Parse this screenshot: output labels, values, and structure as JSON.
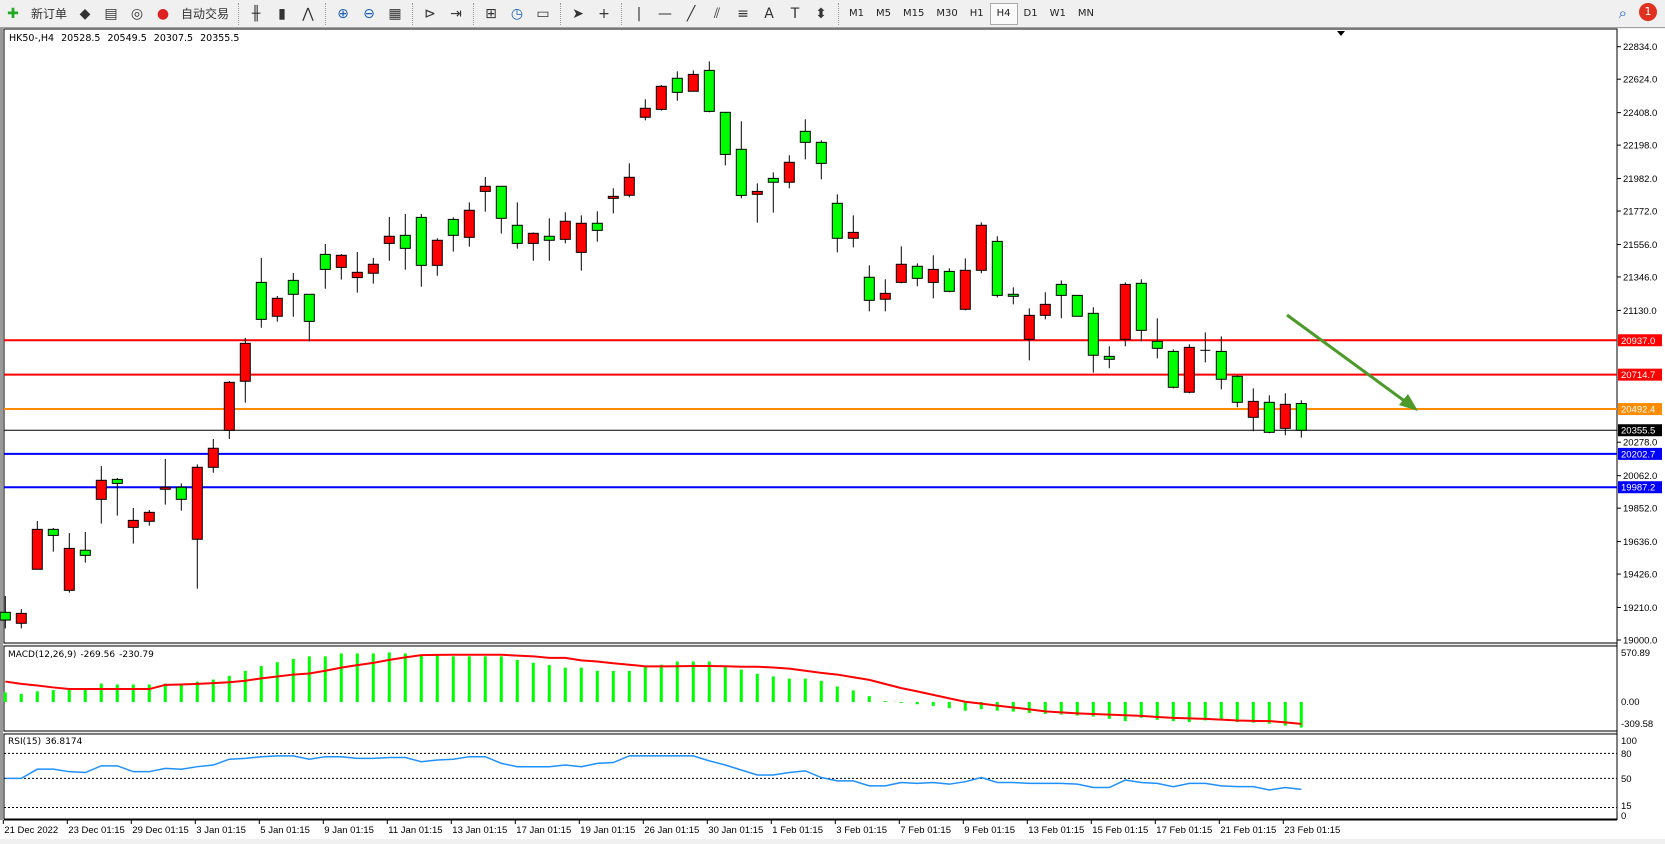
{
  "toolbar": {
    "new_order": "新订单",
    "auto_trading": "自动交易",
    "icons": [
      "new-order-icon",
      "market-watch-icon",
      "navigator-icon",
      "signals-icon",
      "auto-trading-icon",
      "bar-chart-icon",
      "candlestick-icon",
      "line-chart-icon",
      "zoom-in-icon",
      "zoom-out-icon",
      "tile-windows-icon",
      "chart-shift-icon",
      "autoscroll-icon",
      "indicators-icon",
      "periods-icon",
      "templates-icon",
      "cursor-icon",
      "crosshair-icon",
      "vertical-line-icon",
      "horizontal-line-icon",
      "trendline-icon",
      "equidistant-channel-icon",
      "fibonacci-icon",
      "text-icon",
      "text-label-icon",
      "arrows-icon"
    ],
    "timeframes": [
      "M1",
      "M5",
      "M15",
      "M30",
      "H1",
      "H4",
      "D1",
      "W1",
      "MN"
    ],
    "active_timeframe": "H4",
    "notification_count": "1"
  },
  "header": {
    "symbol": "HK50-,H4",
    "open": "20528.5",
    "high": "20549.5",
    "low": "20307.5",
    "close": "20355.5"
  },
  "colors": {
    "bull": "#ff0000",
    "bear": "#00ff00",
    "macd_hist": "#00ff00",
    "macd_signal": "#ff0000",
    "rsi": "#1e90ff",
    "arrow": "#4c9a2a"
  },
  "chart_data": [
    {
      "type": "candlestick",
      "ylim": [
        19000,
        22834
      ],
      "price_ticks": [
        "22834.0",
        "22624.0",
        "22408.0",
        "22198.0",
        "21982.0",
        "21772.0",
        "21556.0",
        "21346.0",
        "21130.0",
        "20278.0",
        "20062.0",
        "19852.0",
        "19636.0",
        "19426.0",
        "19210.0",
        "19000.0"
      ],
      "time_labels": [
        "21 Dec 2022",
        "23 Dec 01:15",
        "29 Dec 01:15",
        "3 Jan 01:15",
        "5 Jan 01:15",
        "9 Jan 01:15",
        "11 Jan 01:15",
        "13 Jan 01:15",
        "17 Jan 01:15",
        "19 Jan 01:15",
        "26 Jan 01:15",
        "30 Jan 01:15",
        "1 Feb 01:15",
        "3 Feb 01:15",
        "7 Feb 01:15",
        "9 Feb 01:15",
        "13 Feb 01:15",
        "15 Feb 01:15",
        "17 Feb 01:15",
        "21 Feb 01:15",
        "23 Feb 01:15"
      ],
      "hlines": [
        {
          "price": "20937.0",
          "color": "#ff0000"
        },
        {
          "price": "20714.7",
          "color": "#ff0000"
        },
        {
          "price": "20492.4",
          "color": "#ff8c00"
        },
        {
          "price": "20355.5",
          "color": "#000000"
        },
        {
          "price": "20202.7",
          "color": "#0000ff"
        },
        {
          "price": "19987.2",
          "color": "#0000ff"
        }
      ],
      "ohlc": [
        [
          19179,
          19284,
          19075,
          19129
        ],
        [
          19108,
          19200,
          19075,
          19172
        ],
        [
          19457,
          19769,
          19457,
          19715
        ],
        [
          19715,
          19724,
          19571,
          19676
        ],
        [
          19321,
          19691,
          19306,
          19592
        ],
        [
          19580,
          19698,
          19500,
          19547
        ],
        [
          19909,
          20124,
          19752,
          20032
        ],
        [
          20038,
          20047,
          19804,
          20012
        ],
        [
          19728,
          19853,
          19623,
          19773
        ],
        [
          19767,
          19840,
          19739,
          19825
        ],
        [
          19974,
          20170,
          19875,
          19987
        ],
        [
          19987,
          20012,
          19836,
          19909
        ],
        [
          19651,
          20135,
          19332,
          20116
        ],
        [
          20116,
          20299,
          20081,
          20239
        ],
        [
          20355,
          20674,
          20299,
          20665
        ],
        [
          20672,
          20952,
          20534,
          20917
        ],
        [
          21311,
          21469,
          21018,
          21072
        ],
        [
          21092,
          21223,
          21057,
          21208
        ],
        [
          21324,
          21372,
          21089,
          21234
        ],
        [
          21234,
          21234,
          20930,
          21059
        ],
        [
          21492,
          21559,
          21270,
          21395
        ],
        [
          21408,
          21494,
          21329,
          21486
        ],
        [
          21342,
          21507,
          21245,
          21376
        ],
        [
          21370,
          21469,
          21303,
          21428
        ],
        [
          21563,
          21734,
          21451,
          21609
        ],
        [
          21615,
          21753,
          21393,
          21531
        ],
        [
          21731,
          21753,
          21283,
          21421
        ],
        [
          21421,
          21596,
          21354,
          21583
        ],
        [
          21718,
          21731,
          21510,
          21615
        ],
        [
          21602,
          21828,
          21542,
          21777
        ],
        [
          21899,
          21992,
          21768,
          21932
        ],
        [
          21932,
          21932,
          21626,
          21725
        ],
        [
          21680,
          21828,
          21529,
          21563
        ],
        [
          21563,
          21634,
          21451,
          21628
        ],
        [
          21609,
          21725,
          21451,
          21583
        ],
        [
          21589,
          21764,
          21563,
          21706
        ],
        [
          21505,
          21744,
          21387,
          21693
        ],
        [
          21693,
          21770,
          21574,
          21647
        ],
        [
          21854,
          21919,
          21757,
          21867
        ],
        [
          21874,
          22080,
          21861,
          21990
        ],
        [
          22378,
          22494,
          22358,
          22436
        ],
        [
          22429,
          22586,
          22421,
          22578
        ],
        [
          22630,
          22675,
          22485,
          22539
        ],
        [
          22546,
          22681,
          22546,
          22655
        ],
        [
          22681,
          22739,
          22410,
          22416
        ],
        [
          22410,
          22410,
          22067,
          22138
        ],
        [
          22171,
          22352,
          21854,
          21873
        ],
        [
          21880,
          21951,
          21697,
          21899
        ],
        [
          21983,
          22022,
          21762,
          21958
        ],
        [
          21958,
          22132,
          21919,
          22087
        ],
        [
          22287,
          22365,
          22106,
          22216
        ],
        [
          22216,
          22229,
          21977,
          22080
        ],
        [
          21822,
          21880,
          21505,
          21596
        ],
        [
          21596,
          21744,
          21537,
          21634
        ],
        [
          21344,
          21421,
          21124,
          21195
        ],
        [
          21202,
          21331,
          21124,
          21240
        ],
        [
          21311,
          21544,
          21305,
          21428
        ],
        [
          21415,
          21434,
          21286,
          21337
        ],
        [
          21311,
          21486,
          21208,
          21395
        ],
        [
          21382,
          21402,
          21247,
          21253
        ],
        [
          21137,
          21466,
          21130,
          21389
        ],
        [
          21389,
          21699,
          21370,
          21680
        ],
        [
          21576,
          21609,
          21214,
          21227
        ],
        [
          21234,
          21279,
          21169,
          21221
        ],
        [
          20943,
          21143,
          20807,
          21098
        ],
        [
          21098,
          21247,
          21072,
          21169
        ],
        [
          21298,
          21324,
          21079,
          21227
        ],
        [
          21227,
          21227,
          21092,
          21092
        ],
        [
          21111,
          21150,
          20728,
          20840
        ],
        [
          20833,
          20898,
          20756,
          20814
        ],
        [
          20943,
          21311,
          20898,
          21298
        ],
        [
          21305,
          21331,
          20930,
          21001
        ],
        [
          20930,
          21079,
          20820,
          20885
        ],
        [
          20865,
          20878,
          20626,
          20633
        ],
        [
          20601,
          20911,
          20594,
          20891
        ],
        [
          20872,
          20988,
          20794,
          20872
        ],
        [
          20865,
          20962,
          20620,
          20685
        ],
        [
          20704,
          20710,
          20504,
          20536
        ],
        [
          20439,
          20626,
          20349,
          20542
        ],
        [
          20536,
          20581,
          20336,
          20342
        ],
        [
          20368,
          20594,
          20323,
          20523
        ],
        [
          20528.5,
          20549.5,
          20307.5,
          20355.5
        ]
      ]
    },
    {
      "type": "bar",
      "title": "MACD(12,26,9)",
      "value": "-269.56",
      "signal_value": "-230.79",
      "ticks": [
        "570.89",
        "0.00",
        "-309.58"
      ],
      "ylim": [
        -309.58,
        570.89
      ],
      "histogram": [
        102,
        86,
        113,
        126,
        137,
        137,
        195,
        185,
        185,
        185,
        195,
        195,
        216,
        237,
        277,
        329,
        380,
        421,
        455,
        482,
        482,
        513,
        513,
        513,
        524,
        513,
        496,
        496,
        482,
        482,
        482,
        482,
        445,
        415,
        390,
        363,
        363,
        329,
        329,
        329,
        370,
        394,
        428,
        428,
        428,
        370,
        342,
        298,
        270,
        247,
        247,
        223,
        164,
        123,
        62,
        10,
        -10,
        -24,
        -41,
        -65,
        -92,
        -76,
        -92,
        -102,
        -116,
        -126,
        -133,
        -144,
        -154,
        -178,
        -202,
        -168,
        -188,
        -202,
        -212,
        -195,
        -195,
        -212,
        -219,
        -230,
        -250,
        -269.56
      ],
      "signal": [
        216,
        192,
        175,
        154,
        137,
        137,
        137,
        137,
        137,
        137,
        181,
        185,
        192,
        200,
        209,
        225,
        250,
        270,
        290,
        301,
        330,
        363,
        390,
        414,
        445,
        472,
        496,
        498,
        500,
        500,
        500,
        500,
        490,
        483,
        466,
        466,
        440,
        428,
        410,
        394,
        377,
        377,
        378,
        380,
        380,
        378,
        373,
        373,
        365,
        353,
        330,
        308,
        290,
        262,
        234,
        190,
        147,
        112,
        75,
        38,
        3,
        -17,
        -38,
        -58,
        -78,
        -99,
        -110,
        -120,
        -127,
        -133,
        -140,
        -147,
        -158,
        -168,
        -173,
        -178,
        -186,
        -195,
        -199,
        -202,
        -215,
        -230.79
      ]
    },
    {
      "type": "line",
      "title": "RSI(15)",
      "value": "36.8174",
      "ticks": [
        "100",
        "80",
        "50",
        "15",
        "0"
      ],
      "levels": [
        80,
        50,
        15
      ],
      "ylim": [
        0,
        100
      ],
      "values": [
        50,
        50,
        61,
        61,
        58,
        57,
        65,
        65,
        58,
        58,
        62,
        61,
        64,
        66,
        73,
        74,
        76,
        77,
        77,
        73,
        76,
        76,
        74,
        74,
        75,
        75,
        70,
        72,
        73,
        76,
        76,
        68,
        64,
        64,
        64,
        66,
        64,
        68,
        69,
        77,
        77,
        77,
        77,
        77,
        71,
        66,
        60,
        54,
        54,
        57,
        59,
        51,
        47,
        47,
        41,
        41,
        45,
        44,
        45,
        43,
        46,
        51,
        45,
        45,
        44,
        44,
        44,
        43,
        39,
        39,
        48,
        45,
        44,
        40,
        44,
        44,
        41,
        40,
        40,
        36,
        39,
        36.8174
      ]
    }
  ]
}
